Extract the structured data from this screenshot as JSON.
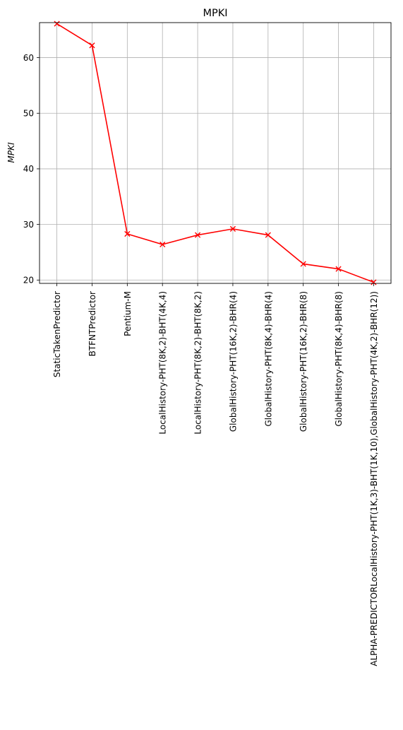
{
  "chart_data": {
    "type": "line",
    "title": "MPKI",
    "xlabel": "",
    "ylabel": "MPKI",
    "categories": [
      "StaticTakenPredictor",
      "BTFNTPredictor",
      "Pentium-M",
      "LocalHistory-PHT(8K,2)-BHT(4K,4)",
      "LocalHistory-PHT(8K,2)-BHT(8K,2)",
      "GlobalHistory-PHT(16K,2)-BHR(4)",
      "GlobalHistory-PHT(8K,4)-BHR(4)",
      "GlobalHistory-PHT(16K,2)-BHR(8)",
      "GlobalHistory-PHT(8K,4)-BHR(8)",
      "ALPHA-PREDICTORLocalHistory-PHT(1K,3)-BHT(1K,10),GlobalHistory-PHT(4K,2)-BHR(12))"
    ],
    "series": [
      {
        "values": [
          66.1,
          62.2,
          28.3,
          26.4,
          28.1,
          29.2,
          28.1,
          22.9,
          22.0,
          19.6
        ]
      }
    ],
    "yticks": [
      20,
      30,
      40,
      50,
      60
    ],
    "ylim": [
      19.4,
      66.3
    ],
    "grid": true,
    "line_color": "#ff0000",
    "marker": "x"
  }
}
